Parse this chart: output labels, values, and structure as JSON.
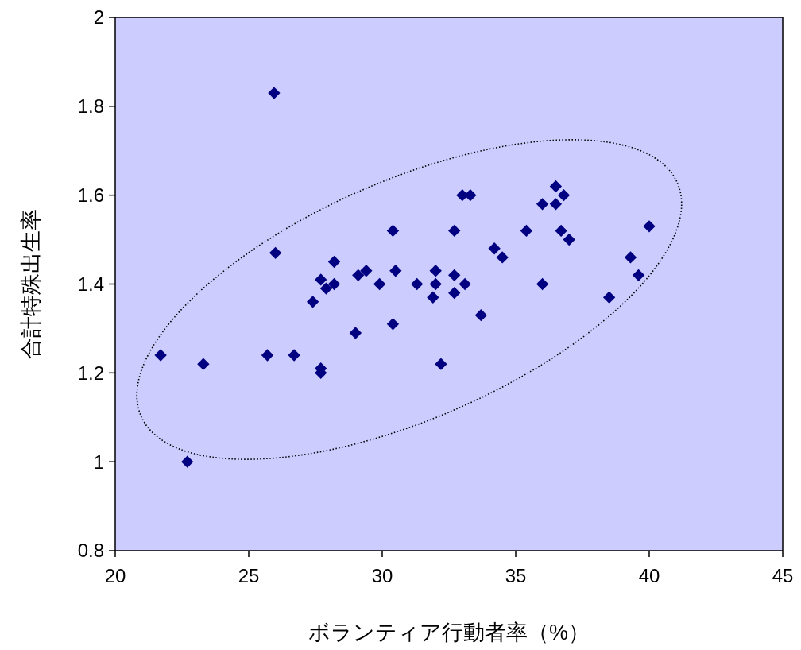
{
  "chart_data": {
    "type": "scatter",
    "xlabel": "ボランティア行動者率（%）",
    "ylabel": "合計特殊出生率",
    "xlim": [
      20,
      45
    ],
    "xticks": [
      20,
      25,
      30,
      35,
      40,
      45
    ],
    "ylim": [
      0.8,
      2
    ],
    "yticks": [
      0.8,
      1,
      1.2,
      1.4,
      1.6,
      1.8,
      2
    ],
    "marker": "diamond",
    "grid": false,
    "series": [
      {
        "color": "#000080",
        "x": [
          25.95,
          26.0,
          21.7,
          23.3,
          22.7,
          25.7,
          26.7,
          27.4,
          27.7,
          27.9,
          28.2,
          28.2,
          27.7,
          27.7,
          29.0,
          29.1,
          29.4,
          29.9,
          30.4,
          30.5,
          30.4,
          31.3,
          32.0,
          32.0,
          31.9,
          32.2,
          32.7,
          32.7,
          32.7,
          33.0,
          33.3,
          33.1,
          33.7,
          34.2,
          34.5,
          35.4,
          36.0,
          36.0,
          36.5,
          36.5,
          36.8,
          36.7,
          37.0,
          38.5,
          39.3,
          39.6,
          40.0
        ],
        "values": [
          1.83,
          1.47,
          1.24,
          1.22,
          1.0,
          1.24,
          1.24,
          1.36,
          1.41,
          1.39,
          1.4,
          1.45,
          1.2,
          1.21,
          1.29,
          1.42,
          1.43,
          1.4,
          1.52,
          1.43,
          1.31,
          1.4,
          1.43,
          1.4,
          1.37,
          1.22,
          1.38,
          1.42,
          1.52,
          1.6,
          1.6,
          1.4,
          1.33,
          1.48,
          1.46,
          1.52,
          1.4,
          1.58,
          1.58,
          1.62,
          1.6,
          1.52,
          1.5,
          1.37,
          1.46,
          1.42,
          1.53
        ]
      }
    ]
  }
}
